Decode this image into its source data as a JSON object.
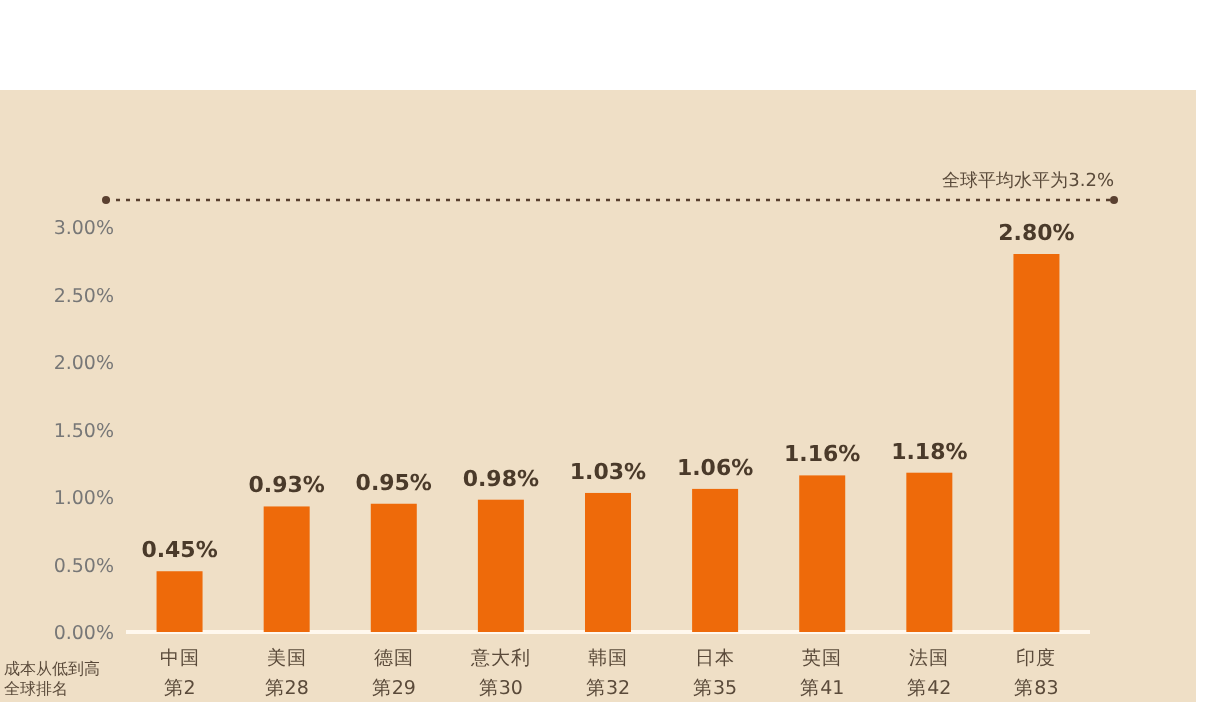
{
  "chart_data": {
    "type": "bar",
    "categories": [
      "中国",
      "美国",
      "德国",
      "意大利",
      "韩国",
      "日本",
      "英国",
      "法国",
      "印度"
    ],
    "values": [
      0.45,
      0.93,
      0.95,
      0.98,
      1.03,
      1.06,
      1.16,
      1.18,
      2.8
    ],
    "value_labels": [
      "0.45%",
      "0.93%",
      "0.95%",
      "0.98%",
      "1.03%",
      "1.06%",
      "1.16%",
      "1.18%",
      "2.80%"
    ],
    "color": "#ee6a0a",
    "ylim": [
      0,
      3.2
    ],
    "yticks": [
      {
        "value": 0,
        "label": "0.00%"
      },
      {
        "value": 0.5,
        "label": "0.50%"
      },
      {
        "value": 1,
        "label": "1.00%"
      },
      {
        "value": 1.5,
        "label": "1.50%"
      },
      {
        "value": 2,
        "label": "2.00%"
      },
      {
        "value": 2.5,
        "label": "2.50%"
      },
      {
        "value": 3,
        "label": "3.00%"
      }
    ],
    "ref_lines": [
      {
        "axis": "y",
        "value": 3.2,
        "label": "全球平均水平为3.2%",
        "color": "#5a4030",
        "line_style": "dotted"
      }
    ],
    "annotations": [
      "成本从低到高",
      "全球排名",
      "第2",
      "第28",
      "第29",
      "第30",
      "第32",
      "第35",
      "第41",
      "第42",
      "第83"
    ],
    "grid": false
  }
}
